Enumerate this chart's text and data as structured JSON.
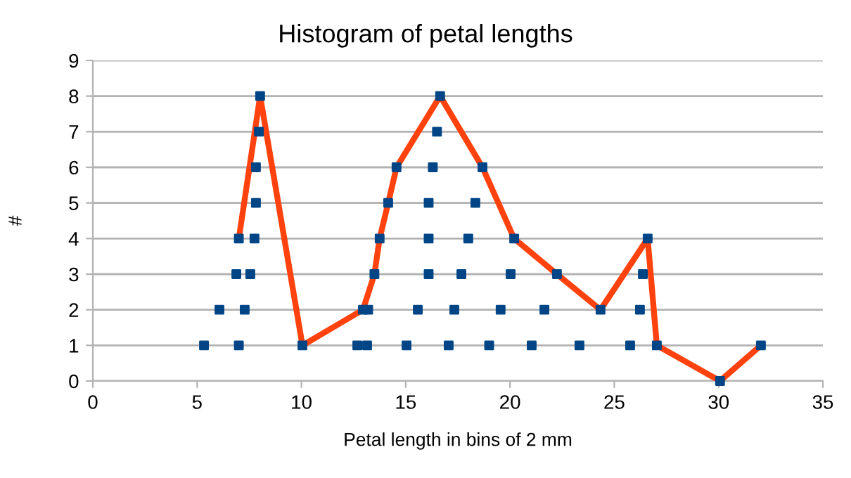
{
  "chart_data": {
    "type": "scatter",
    "title": "Histogram of petal lengths",
    "xlabel": "Petal length in bins of 2 mm",
    "ylabel": "#",
    "xlim": [
      0,
      35
    ],
    "xticks": [
      0,
      5,
      10,
      15,
      20,
      25,
      30,
      35
    ],
    "ylim": [
      0,
      9
    ],
    "yticks": [
      0,
      1,
      2,
      3,
      4,
      5,
      6,
      7,
      8,
      9
    ],
    "grid": "y",
    "series": [
      {
        "color": "#004586",
        "marker": "square",
        "x": [
          5.33,
          6.07,
          6.88,
          7.0,
          7.0,
          7.28,
          7.55,
          7.75,
          7.82,
          7.82,
          7.96,
          8.02,
          10.05,
          12.68,
          12.95,
          13.15,
          13.2,
          13.5,
          13.75,
          14.16,
          14.56,
          15.04,
          15.58,
          16.1,
          16.1,
          16.1,
          16.3,
          16.5,
          16.65,
          17.06,
          17.33,
          17.67,
          18.0,
          18.34,
          18.68,
          19.0,
          19.55,
          20.03,
          20.2,
          21.04,
          21.65,
          22.25,
          23.33,
          24.34,
          25.76,
          26.23,
          26.37,
          26.6,
          27.04,
          30.07,
          32.03
        ],
        "values": [
          1,
          2,
          3,
          4,
          1,
          2,
          3,
          4,
          5,
          6,
          7,
          8,
          1,
          1,
          2,
          1,
          2,
          3,
          4,
          5,
          6,
          1,
          2,
          3,
          4,
          5,
          6,
          7,
          8,
          1,
          2,
          3,
          4,
          5,
          6,
          1,
          2,
          3,
          4,
          1,
          2,
          3,
          1,
          2,
          1,
          2,
          3,
          4,
          1,
          0,
          1
        ]
      },
      {
        "type": "line",
        "color": "#ff420e",
        "marker": "none",
        "line_style": "solid",
        "x": [
          7.0,
          8.02,
          10.05,
          12.95,
          13.5,
          13.75,
          14.16,
          14.56,
          16.65,
          18.68,
          20.2,
          22.25,
          24.34,
          26.6,
          27.04,
          30.07,
          32.03
        ],
        "values": [
          4,
          8,
          1,
          2,
          3,
          4,
          5,
          6,
          8,
          6,
          4,
          3,
          2,
          4,
          1,
          0,
          1
        ]
      }
    ]
  }
}
